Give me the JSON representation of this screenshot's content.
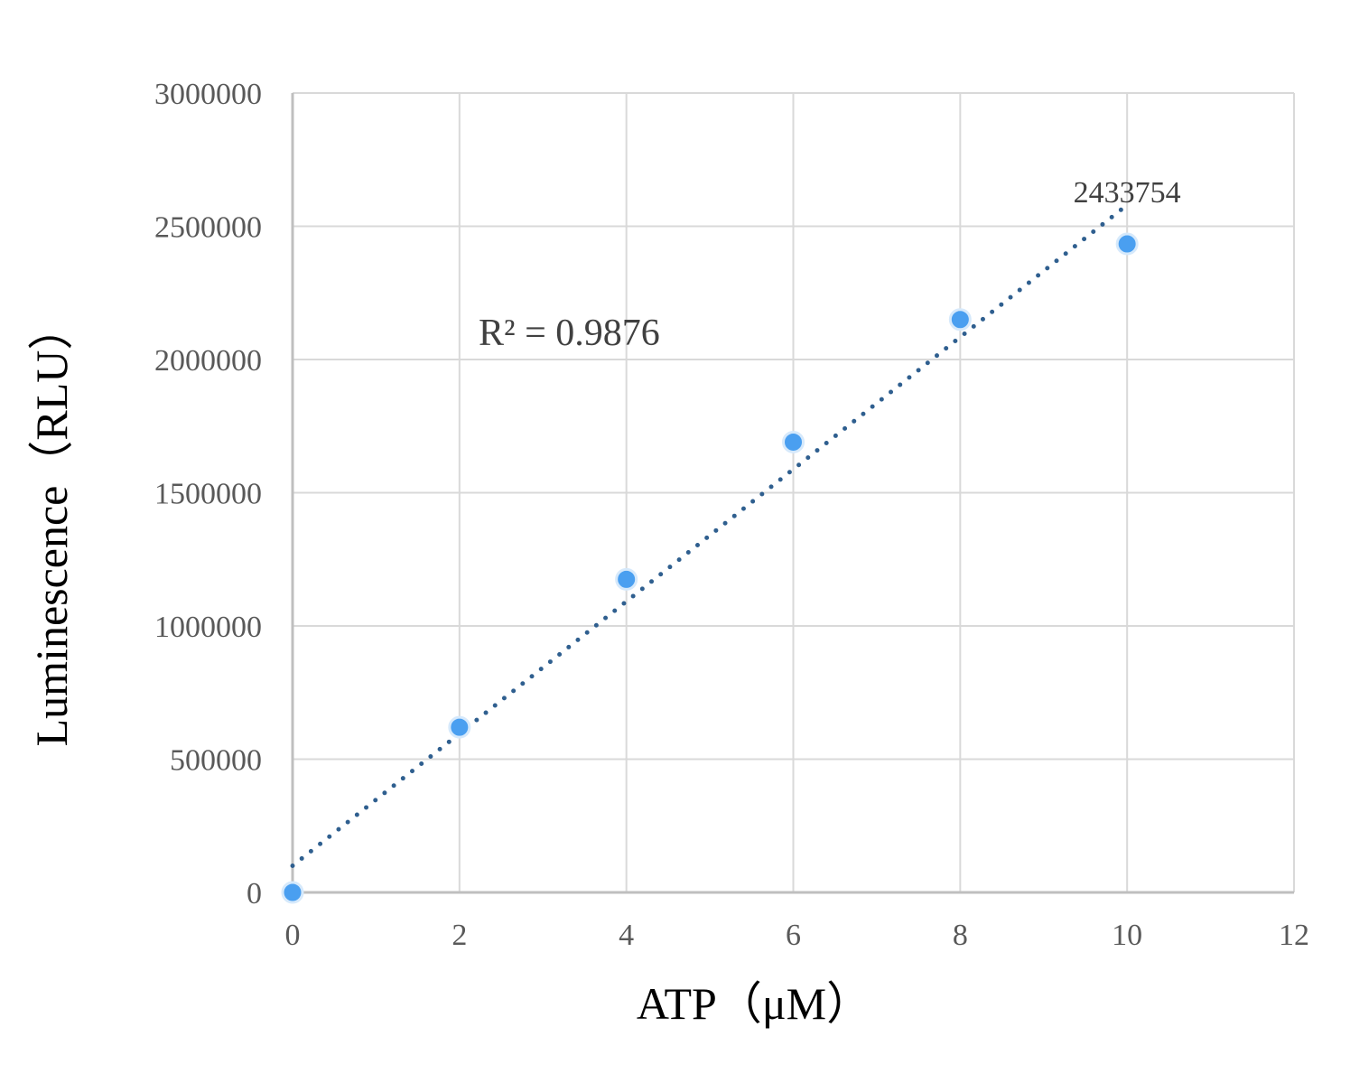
{
  "chart_data": {
    "type": "scatter",
    "x": [
      0,
      2,
      4,
      6,
      8,
      10
    ],
    "y": [
      0,
      620000,
      1175000,
      1690000,
      2150000,
      2433754
    ],
    "xlim": [
      0,
      12
    ],
    "ylim": [
      0,
      3000000
    ],
    "x_ticks": [
      0,
      2,
      4,
      6,
      8,
      10,
      12
    ],
    "y_ticks": [
      0,
      500000,
      1000000,
      1500000,
      2000000,
      2500000,
      3000000
    ],
    "x_tick_labels": [
      "0",
      "2",
      "4",
      "6",
      "8",
      "10",
      "12"
    ],
    "y_tick_labels": [
      "0",
      "500000",
      "1000000",
      "1500000",
      "2000000",
      "2500000",
      "3000000"
    ],
    "xlabel": "ATP（μM）",
    "ylabel": "Luminescence（RLU）",
    "grid": true,
    "trendline": {
      "style": "dotted",
      "kind": "linear",
      "x_range": [
        0,
        10
      ],
      "y_range": [
        100000,
        2580000
      ],
      "r_squared_label": "R² = 0.9876"
    },
    "data_labels": [
      {
        "x": 10,
        "text": "2433754"
      }
    ],
    "colors": {
      "points": "#4a9ff0",
      "trendline": "#2f5f8f",
      "grid": "#d9d9d9",
      "axis": "#bfbfbf"
    }
  }
}
